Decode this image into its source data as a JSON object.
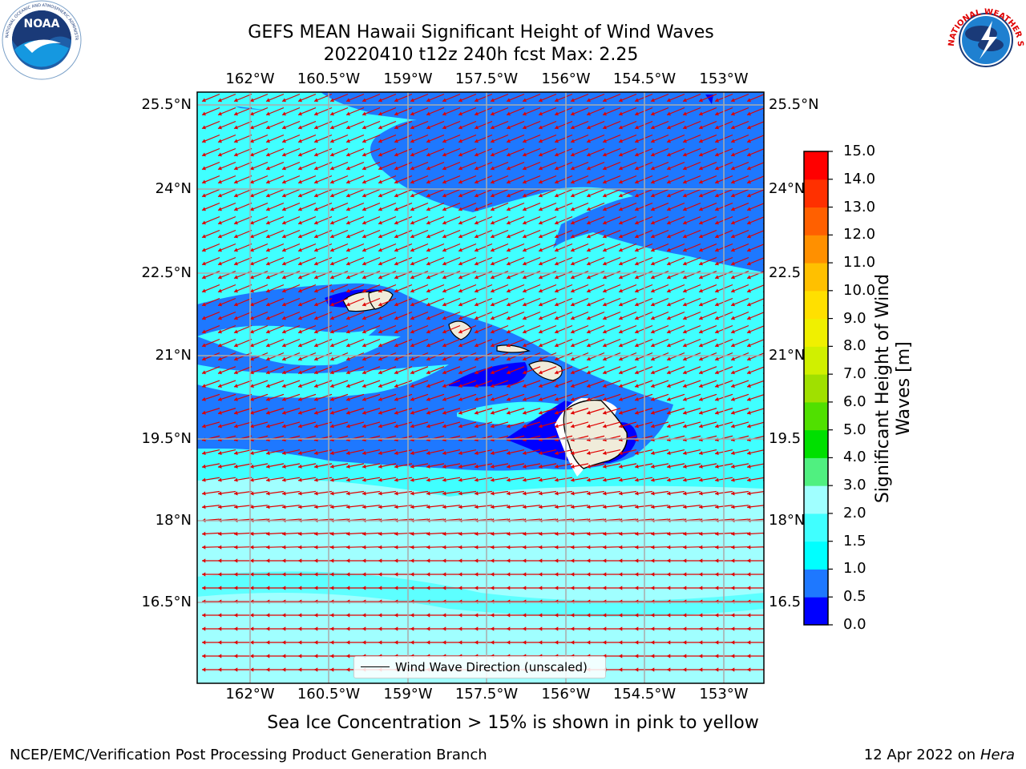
{
  "header": {
    "title_line1": "GEFS MEAN Hawaii Significant Height of Wind Waves",
    "title_line2": "20220410 t12z 240h fcst   Max: 2.25"
  },
  "logos": {
    "noaa_left": "NOAA",
    "noaa_ring_text": "NATIONAL OCEANIC AND ATMOSPHERIC ADMINISTRATION · U.S. DEPARTMENT OF COMMERCE",
    "nws_ring_text": "NATIONAL WEATHER SERVICE"
  },
  "axes": {
    "lon_ticks": [
      "162°W",
      "160.5°W",
      "159°W",
      "157.5°W",
      "156°W",
      "154.5°W",
      "153°W"
    ],
    "lat_ticks": [
      "25.5°N",
      "24°N",
      "22.5°N",
      "21°N",
      "19.5°N",
      "18°N",
      "16.5°N"
    ],
    "lat_ticks_right": [
      "25.5°N",
      "24°N",
      "22.5",
      "21°N",
      "19.5",
      "18°N",
      "16.5"
    ]
  },
  "colorbar": {
    "label": "Significant Height of Wind Waves [m]",
    "ticks": [
      "0.0",
      "0.5",
      "1.0",
      "1.5",
      "2.0",
      "3.0",
      "4.0",
      "5.0",
      "6.0",
      "7.0",
      "8.0",
      "9.0",
      "10.0",
      "11.0",
      "12.0",
      "13.0",
      "14.0",
      "15.0"
    ],
    "colors": [
      "#0000ff",
      "#1e78ff",
      "#00ffff",
      "#40ffff",
      "#a0ffff",
      "#50f080",
      "#00e000",
      "#50e000",
      "#a0e000",
      "#d0f000",
      "#f0f000",
      "#ffe000",
      "#ffc000",
      "#ff9000",
      "#ff6000",
      "#ff3000",
      "#ff0000"
    ]
  },
  "legend": {
    "wind_wave_direction": "Wind Wave Direction (unscaled)"
  },
  "map": {
    "wind_wave_vectors": "red",
    "island_fill": "#f0ecda",
    "vector_color": "#e00000"
  },
  "footer": {
    "sea_ice_note": "Sea Ice Concentration > 15% is shown in pink to yellow",
    "producer": "NCEP/EMC/Verification Post Processing Product Generation Branch",
    "date": "12 Apr 2022 on ",
    "machine": "Hera"
  }
}
